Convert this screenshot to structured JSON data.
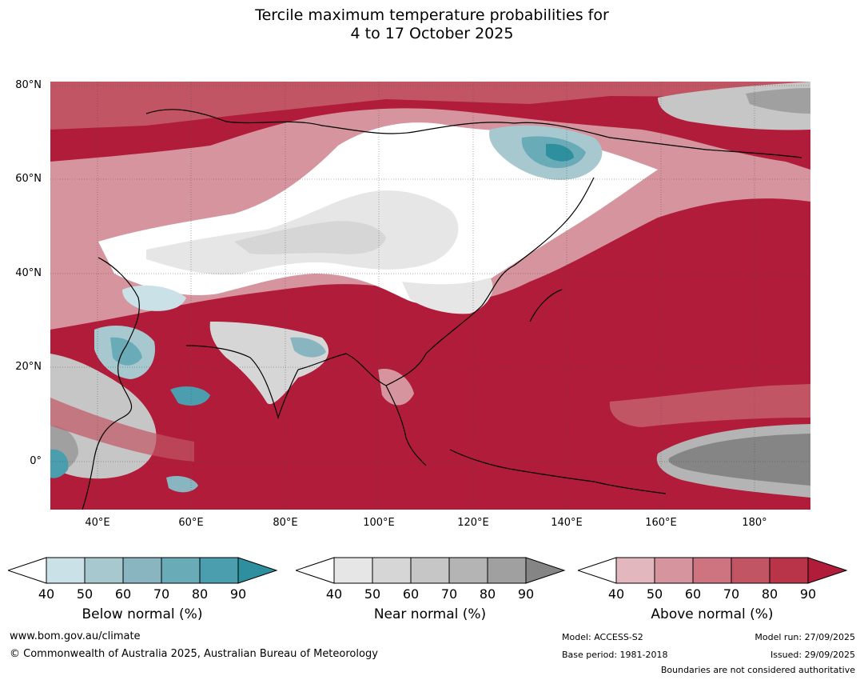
{
  "title": {
    "line1": "Tercile maximum temperature probabilities for",
    "line2": "4 to 17 October 2025"
  },
  "map": {
    "latitude_labels": [
      "80°N",
      "60°N",
      "40°N",
      "20°N",
      "0°"
    ],
    "longitude_labels": [
      "40°E",
      "60°E",
      "80°E",
      "100°E",
      "120°E",
      "140°E",
      "160°E",
      "180°"
    ],
    "extent": {
      "lon_min": 30,
      "lon_max": 192,
      "lat_min": -10,
      "lat_max": 81
    }
  },
  "legends": [
    {
      "title": "Below normal (%)",
      "ticks": [
        "40",
        "50",
        "60",
        "70",
        "80",
        "90"
      ],
      "colors": [
        "#c9e1e7",
        "#a7c8cf",
        "#89b5c0",
        "#6aabb8",
        "#4a9eae",
        "#2e8f9f"
      ]
    },
    {
      "title": "Near normal (%)",
      "ticks": [
        "40",
        "50",
        "60",
        "70",
        "80",
        "90"
      ],
      "colors": [
        "#e6e6e6",
        "#d6d6d6",
        "#c6c6c6",
        "#b4b4b4",
        "#a0a0a0",
        "#858585"
      ]
    },
    {
      "title": "Above normal (%)",
      "ticks": [
        "40",
        "50",
        "60",
        "70",
        "80",
        "90"
      ],
      "colors": [
        "#e2b8be",
        "#d6959e",
        "#cd7480",
        "#c25564",
        "#b93449",
        "#b01c39"
      ]
    }
  ],
  "footer": {
    "website": "www.bom.gov.au/climate",
    "copyright": "© Commonwealth of Australia 2025, Australian Bureau of Meteorology",
    "model": "Model: ACCESS-S2",
    "base_period": "Base period: 1981-2018",
    "model_run": "Model run: 27/09/2025",
    "issued": "Issued: 29/09/2025",
    "disclaimer": "Boundaries are not considered authoritative"
  }
}
